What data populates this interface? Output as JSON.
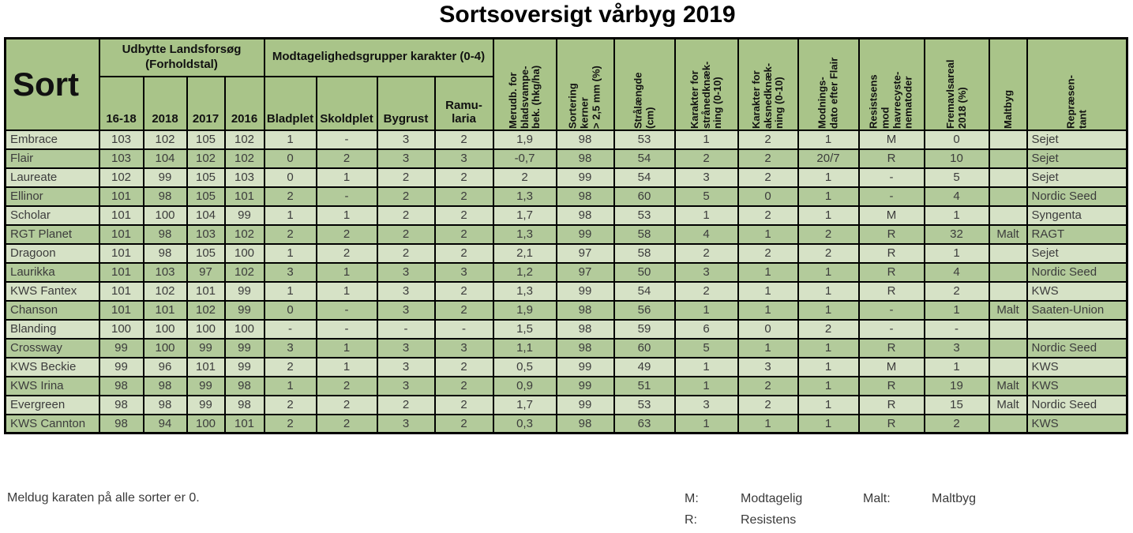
{
  "title": "Sortsoversigt vårbyg 2019",
  "footnote": "Meldug karaten på alle sorter er 0.",
  "legend": {
    "m_key": "M:",
    "m_value": "Modtagelig",
    "r_key": "R:",
    "r_value": "Resistens",
    "malt_key": "Malt:",
    "malt_value": "Maltbyg"
  },
  "colors": {
    "header_bg": "#a9c489",
    "row_light": "#d6e2c6",
    "row_dark": "#b3cb9b",
    "border_color": "#000000",
    "data_text": "#3c3c3c",
    "header_text": "#111111"
  },
  "table": {
    "corner_header": "Sort",
    "groups": [
      {
        "label": "Udbytte Landsforsøg\n(Forholdstal)",
        "span": 4
      },
      {
        "label": "Modtagelighedsgrupper karakter (0-4)",
        "span": 4
      }
    ],
    "sub_headers": [
      "16-18",
      "2018",
      "2017",
      "2016",
      "Bladplet",
      "Skoldplet",
      "Bygrust",
      "Ramu-\nlaria"
    ],
    "rotated_headers": [
      "Merudb. for\nbladsvampe-\nbek. (hkg/ha)",
      "Sortering\nkerner\n> 2,5 mm (%)",
      "Strålængde\n(cm)",
      "Karakter for\nstrånedknæk-\nning (0-10)",
      "Karakter for\naksnedknæk-\nning (0-10)",
      "Modnings-\ndato efter Flair",
      "Resistsens\nmod\nhavrecyste-\nnematoder",
      "Fremavlsareal\n2018 (%)",
      "Maltbyg",
      "Repræsen-\ntant"
    ],
    "rows": [
      [
        "Embrace",
        "103",
        "102",
        "105",
        "102",
        "1",
        "-",
        "3",
        "2",
        "1,9",
        "98",
        "53",
        "1",
        "2",
        "1",
        "M",
        "0",
        "",
        "Sejet"
      ],
      [
        "Flair",
        "103",
        "104",
        "102",
        "102",
        "0",
        "2",
        "3",
        "3",
        "-0,7",
        "98",
        "54",
        "2",
        "2",
        "20/7",
        "R",
        "10",
        "",
        "Sejet"
      ],
      [
        "Laureate",
        "102",
        "99",
        "105",
        "103",
        "0",
        "1",
        "2",
        "2",
        "2",
        "99",
        "54",
        "3",
        "2",
        "1",
        "-",
        "5",
        "",
        "Sejet"
      ],
      [
        "Ellinor",
        "101",
        "98",
        "105",
        "101",
        "2",
        "-",
        "2",
        "2",
        "1,3",
        "98",
        "60",
        "5",
        "0",
        "1",
        "-",
        "4",
        "",
        "Nordic Seed"
      ],
      [
        "Scholar",
        "101",
        "100",
        "104",
        "99",
        "1",
        "1",
        "2",
        "2",
        "1,7",
        "98",
        "53",
        "1",
        "2",
        "1",
        "M",
        "1",
        "",
        "Syngenta"
      ],
      [
        "RGT Planet",
        "101",
        "98",
        "103",
        "102",
        "2",
        "2",
        "2",
        "2",
        "1,3",
        "99",
        "58",
        "4",
        "1",
        "2",
        "R",
        "32",
        "Malt",
        "RAGT"
      ],
      [
        "Dragoon",
        "101",
        "98",
        "105",
        "100",
        "1",
        "2",
        "2",
        "2",
        "2,1",
        "97",
        "58",
        "2",
        "2",
        "2",
        "R",
        "1",
        "",
        "Sejet"
      ],
      [
        "Laurikka",
        "101",
        "103",
        "97",
        "102",
        "3",
        "1",
        "3",
        "3",
        "1,2",
        "97",
        "50",
        "3",
        "1",
        "1",
        "R",
        "4",
        "",
        "Nordic Seed"
      ],
      [
        "KWS Fantex",
        "101",
        "102",
        "101",
        "99",
        "1",
        "1",
        "3",
        "2",
        "1,3",
        "99",
        "54",
        "2",
        "1",
        "1",
        "R",
        "2",
        "",
        "KWS"
      ],
      [
        "Chanson",
        "101",
        "101",
        "102",
        "99",
        "0",
        "-",
        "3",
        "2",
        "1,9",
        "98",
        "56",
        "1",
        "1",
        "1",
        "-",
        "1",
        "Malt",
        "Saaten-Union"
      ],
      [
        "Blanding",
        "100",
        "100",
        "100",
        "100",
        "-",
        "-",
        "-",
        "-",
        "1,5",
        "98",
        "59",
        "6",
        "0",
        "2",
        "-",
        "-",
        "",
        ""
      ],
      [
        "Crossway",
        "99",
        "100",
        "99",
        "99",
        "3",
        "1",
        "3",
        "3",
        "1,1",
        "98",
        "60",
        "5",
        "1",
        "1",
        "R",
        "3",
        "",
        "Nordic Seed"
      ],
      [
        "KWS Beckie",
        "99",
        "96",
        "101",
        "99",
        "2",
        "1",
        "3",
        "2",
        "0,5",
        "99",
        "49",
        "1",
        "3",
        "1",
        "M",
        "1",
        "",
        "KWS"
      ],
      [
        "KWS Irina",
        "98",
        "98",
        "99",
        "98",
        "1",
        "2",
        "3",
        "2",
        "0,9",
        "99",
        "51",
        "1",
        "2",
        "1",
        "R",
        "19",
        "Malt",
        "KWS"
      ],
      [
        "Evergreen",
        "98",
        "98",
        "99",
        "98",
        "2",
        "2",
        "2",
        "2",
        "1,7",
        "99",
        "53",
        "3",
        "2",
        "1",
        "R",
        "15",
        "Malt",
        "Nordic Seed"
      ],
      [
        "KWS Cannton",
        "98",
        "94",
        "100",
        "101",
        "2",
        "2",
        "3",
        "2",
        "0,3",
        "98",
        "63",
        "1",
        "1",
        "1",
        "R",
        "2",
        "",
        "KWS"
      ]
    ]
  }
}
